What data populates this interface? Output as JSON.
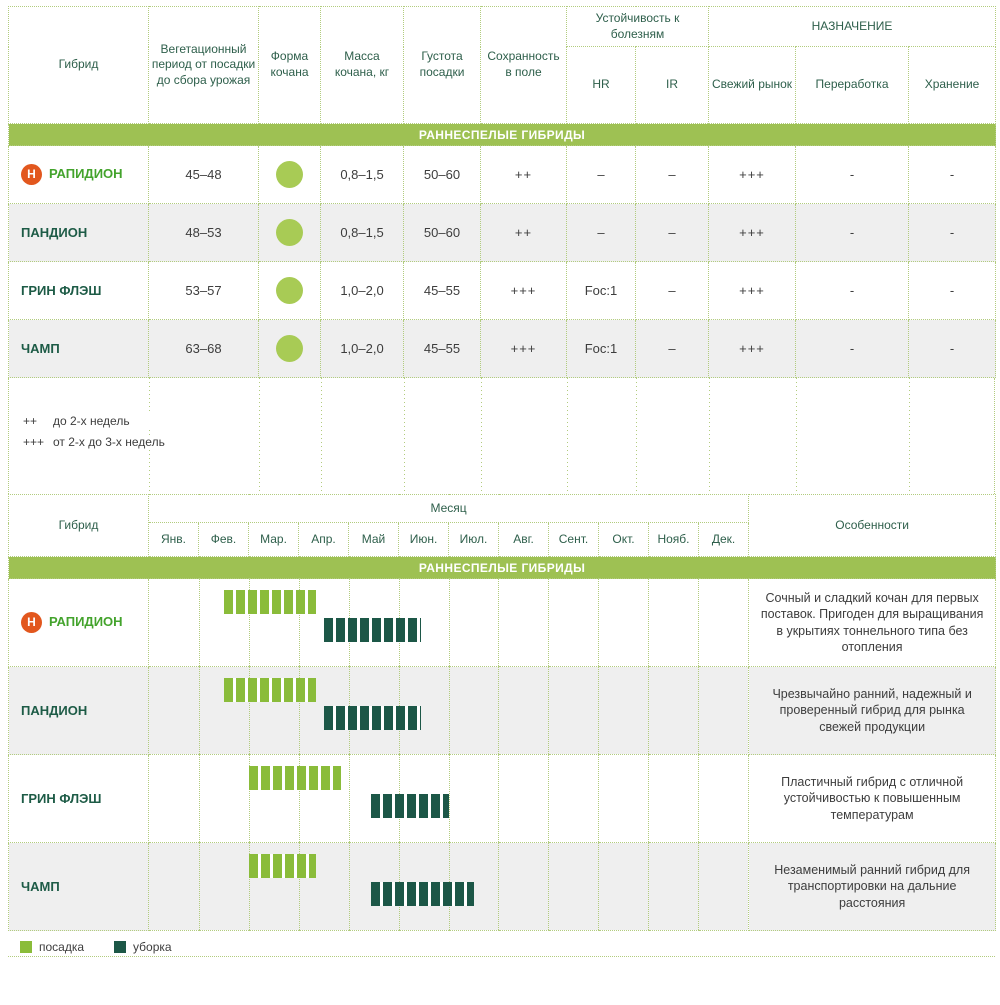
{
  "colors": {
    "border_green": "#b2cc7e",
    "section_bg": "#9ec153",
    "header_text": "#2e5f4b",
    "value_text": "#3d3d3d",
    "dim_text": "#9a9a9a",
    "name_bright": "#43a32c",
    "name_dark": "#1d5b46",
    "planting_green": "#8abc3a",
    "harvest_green": "#1c5747",
    "circle_green": "#a8cb55",
    "badge_orange": "#e2571e",
    "row_alt": "#efefef"
  },
  "table1": {
    "headers": {
      "hybrid": "Гибрид",
      "vegetation": "Вегетационный период от посадки до сбора урожая",
      "shape": "Форма кочана",
      "mass": "Масса кочана, кг",
      "density": "Густота посадки",
      "keeping": "Сохранность в поле",
      "resistance": "Устойчивость к болезням",
      "hr": "HR",
      "ir": "IR",
      "purpose": "НАЗНАЧЕНИЕ",
      "fresh": "Свежий рынок",
      "processing": "Переработка",
      "storage": "Хранение"
    },
    "section_title": "РАННЕСПЕЛЫЕ ГИБРИДЫ",
    "rows": [
      {
        "badge": "Н",
        "name": "РАПИДИОН",
        "vegetation": "45–48",
        "mass": "0,8–1,5",
        "density": "50–60",
        "keeping": "++",
        "hr": "–",
        "ir": "–",
        "fresh": "+++",
        "processing": "-",
        "storage": "-"
      },
      {
        "name": "ПАНДИОН",
        "vegetation": "48–53",
        "mass": "0,8–1,5",
        "density": "50–60",
        "keeping": "++",
        "hr": "–",
        "ir": "–",
        "fresh": "+++",
        "processing": "-",
        "storage": "-"
      },
      {
        "name": "ГРИН ФЛЭШ",
        "vegetation": "53–57",
        "mass": "1,0–2,0",
        "density": "45–55",
        "keeping": "+++",
        "hr": "Foc:1",
        "ir": "–",
        "fresh": "+++",
        "processing": "-",
        "storage": "-"
      },
      {
        "name": "ЧАМП",
        "vegetation": "63–68",
        "mass": "1,0–2,0",
        "density": "45–55",
        "keeping": "+++",
        "hr": "Foc:1",
        "ir": "–",
        "fresh": "+++",
        "processing": "-",
        "storage": "-"
      }
    ],
    "legend": [
      {
        "marker": "++",
        "text": "до 2-х недель"
      },
      {
        "marker": "+++",
        "text": "от 2-х до 3-х недель"
      }
    ]
  },
  "calendar": {
    "headers": {
      "hybrid": "Гибрид",
      "month": "Месяц",
      "features": "Особенности"
    },
    "months": [
      "Янв.",
      "Фев.",
      "Мар.",
      "Апр.",
      "Май",
      "Июн.",
      "Июл.",
      "Авг.",
      "Сент.",
      "Окт.",
      "Нояб.",
      "Дек."
    ],
    "section_title": "РАННЕСПЕЛЫЕ ГИБРИДЫ",
    "rows": [
      {
        "badge": "Н",
        "name": "РАПИДИОН",
        "planting": [
          1.5,
          3.35
        ],
        "harvest": [
          3.5,
          5.45
        ],
        "features": "Сочный и сладкий кочан для первых поставок. Пригоден для выращивания в укрытиях тоннельного типа без отопления"
      },
      {
        "name": "ПАНДИОН",
        "planting": [
          1.5,
          3.35
        ],
        "harvest": [
          3.5,
          5.45
        ],
        "features": "Чрезвычайно ранний, надежный и проверенный гибрид для рынка свежей продукции"
      },
      {
        "name": "ГРИН ФЛЭШ",
        "planting": [
          2.0,
          3.85
        ],
        "harvest": [
          4.45,
          6.0
        ],
        "features": "Пластичный гибрид с отличной устойчивостью к повышенным температурам"
      },
      {
        "name": "ЧАМП",
        "planting": [
          2.0,
          3.35
        ],
        "harvest": [
          4.45,
          6.5
        ],
        "features": "Незаменимый ранний гибрид для транспортировки на дальние расстояния"
      }
    ],
    "legend": [
      {
        "label": "посадка"
      },
      {
        "label": "уборка"
      }
    ]
  }
}
